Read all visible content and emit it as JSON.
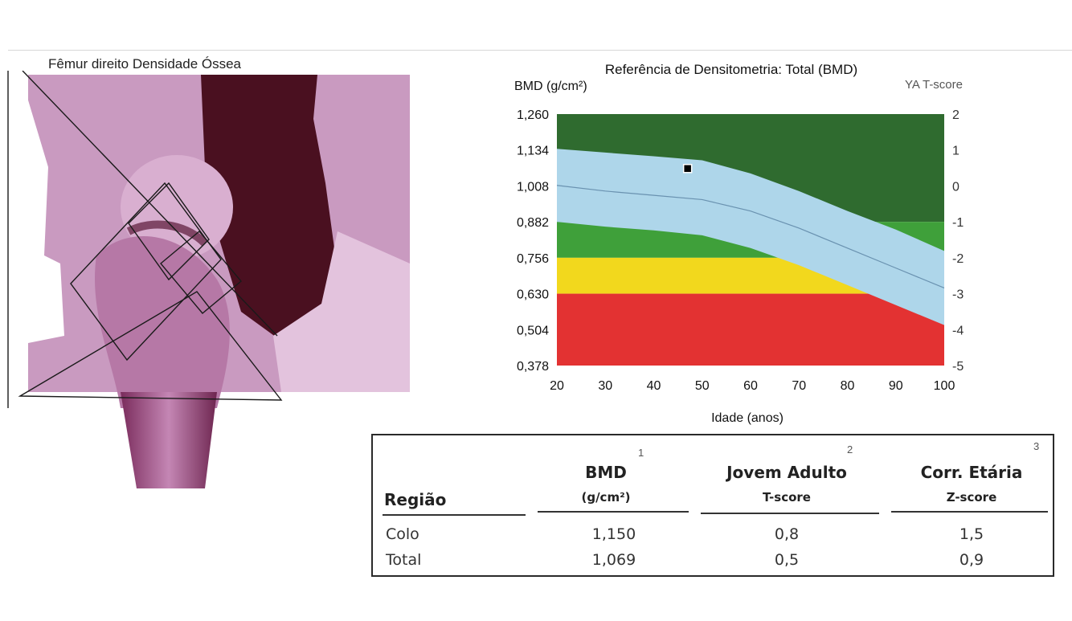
{
  "femur_panel": {
    "title": "Fêmur direito Densidade Óssea"
  },
  "chart_data": {
    "type": "area",
    "title": "Referência de Densitometria: Total (BMD)",
    "ylabel": "BMD (g/cm²)",
    "y2label": "YA T-score",
    "xlabel": "Idade (anos)",
    "xlim": [
      20,
      100
    ],
    "ylim": [
      0.378,
      1.26
    ],
    "x_ticks": [
      20,
      30,
      40,
      50,
      60,
      70,
      80,
      90,
      100
    ],
    "y_ticks": [
      0.378,
      0.504,
      0.63,
      0.756,
      0.882,
      1.008,
      1.134,
      1.26
    ],
    "y_tick_labels": [
      "0,378",
      "0,504",
      "0,630",
      "0,756",
      "0,882",
      "1,008",
      "1,134",
      "1,260"
    ],
    "y2_ticks": [
      -5,
      -4,
      -3,
      -2,
      -1,
      0,
      1,
      2
    ],
    "y2_tick_labels": [
      "-5",
      "-4",
      "-3",
      "-2",
      "-1",
      "0",
      "1",
      "2"
    ],
    "bands": [
      {
        "name": "dark-green",
        "from": 0.882,
        "to": 1.26,
        "color": "#2f6b2f"
      },
      {
        "name": "green",
        "from": 0.756,
        "to": 0.882,
        "color": "#3fa03a"
      },
      {
        "name": "yellow",
        "from": 0.63,
        "to": 0.756,
        "color": "#f2d81d"
      },
      {
        "name": "red",
        "from": 0.378,
        "to": 0.63,
        "color": "#e33232"
      }
    ],
    "reference_curve": {
      "color": "#aed6ea",
      "x": [
        20,
        30,
        40,
        50,
        60,
        70,
        80,
        90,
        100
      ],
      "mean": [
        1.01,
        0.99,
        0.975,
        0.96,
        0.92,
        0.86,
        0.79,
        0.72,
        0.65
      ],
      "upper": [
        1.138,
        1.125,
        1.112,
        1.098,
        1.052,
        0.99,
        0.92,
        0.855,
        0.78
      ],
      "lower": [
        0.882,
        0.865,
        0.852,
        0.835,
        0.79,
        0.73,
        0.66,
        0.59,
        0.52
      ]
    },
    "patient_point": {
      "x": 47,
      "y": 1.069
    }
  },
  "results_table": {
    "col_numbers": [
      "1",
      "2",
      "3"
    ],
    "headers": {
      "region": "Região",
      "bmd": "BMD",
      "bmd_unit": "(g/cm²)",
      "young_adult": "Jovem Adulto",
      "t_score": "T-score",
      "age_matched": "Corr. Etária",
      "z_score": "Z-score"
    },
    "rows": [
      {
        "region": "Colo",
        "bmd": "1,150",
        "t": "0,8",
        "z": "1,5"
      },
      {
        "region": "Total",
        "bmd": "1,069",
        "t": "0,5",
        "z": "0,9"
      }
    ]
  }
}
